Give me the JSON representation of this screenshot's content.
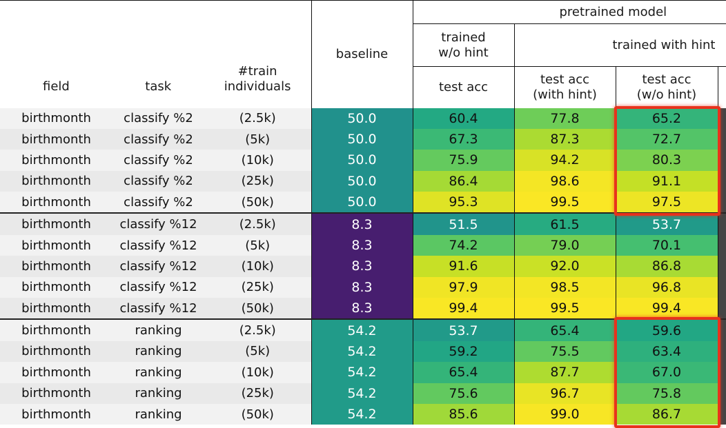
{
  "header": {
    "pretrained_model": "pretrained model",
    "trained_wo_hint": "trained\nw/o hint",
    "trained_with_hint": "trained with hint",
    "baseline": "baseline",
    "field": "field",
    "task": "task",
    "train_individuals": "#train\nindividuals",
    "test_acc": "test acc",
    "test_acc_with_hint": "test acc\n(with hint)",
    "test_acc_wo_hint": "test acc\n(w/o hint)"
  },
  "colors": {
    "highlight": "#e8321c",
    "colormap": "viridis"
  },
  "colormap_range": [
    0,
    100
  ],
  "rows": [
    {
      "field": "birthmonth",
      "task": "classify %2",
      "n": "(2.5k)",
      "baseline": "50.0",
      "wo_hint": "60.4",
      "with_hint": "77.8",
      "with_hint_wo": "65.2"
    },
    {
      "field": "birthmonth",
      "task": "classify %2",
      "n": "(5k)",
      "baseline": "50.0",
      "wo_hint": "67.3",
      "with_hint": "87.3",
      "with_hint_wo": "72.7"
    },
    {
      "field": "birthmonth",
      "task": "classify %2",
      "n": "(10k)",
      "baseline": "50.0",
      "wo_hint": "75.9",
      "with_hint": "94.2",
      "with_hint_wo": "80.3"
    },
    {
      "field": "birthmonth",
      "task": "classify %2",
      "n": "(25k)",
      "baseline": "50.0",
      "wo_hint": "86.4",
      "with_hint": "98.6",
      "with_hint_wo": "91.1"
    },
    {
      "field": "birthmonth",
      "task": "classify %2",
      "n": "(50k)",
      "baseline": "50.0",
      "wo_hint": "95.3",
      "with_hint": "99.5",
      "with_hint_wo": "97.5"
    },
    {
      "field": "birthmonth",
      "task": "classify %12",
      "n": "(2.5k)",
      "baseline": "8.3",
      "wo_hint": "51.5",
      "with_hint": "61.5",
      "with_hint_wo": "53.7"
    },
    {
      "field": "birthmonth",
      "task": "classify %12",
      "n": "(5k)",
      "baseline": "8.3",
      "wo_hint": "74.2",
      "with_hint": "79.0",
      "with_hint_wo": "70.1"
    },
    {
      "field": "birthmonth",
      "task": "classify %12",
      "n": "(10k)",
      "baseline": "8.3",
      "wo_hint": "91.6",
      "with_hint": "92.0",
      "with_hint_wo": "86.8"
    },
    {
      "field": "birthmonth",
      "task": "classify %12",
      "n": "(25k)",
      "baseline": "8.3",
      "wo_hint": "97.9",
      "with_hint": "98.5",
      "with_hint_wo": "96.8"
    },
    {
      "field": "birthmonth",
      "task": "classify %12",
      "n": "(50k)",
      "baseline": "8.3",
      "wo_hint": "99.4",
      "with_hint": "99.5",
      "with_hint_wo": "99.4"
    },
    {
      "field": "birthmonth",
      "task": "ranking",
      "n": "(2.5k)",
      "baseline": "54.2",
      "wo_hint": "53.7",
      "with_hint": "65.4",
      "with_hint_wo": "59.6"
    },
    {
      "field": "birthmonth",
      "task": "ranking",
      "n": "(5k)",
      "baseline": "54.2",
      "wo_hint": "59.2",
      "with_hint": "75.5",
      "with_hint_wo": "63.4"
    },
    {
      "field": "birthmonth",
      "task": "ranking",
      "n": "(10k)",
      "baseline": "54.2",
      "wo_hint": "65.4",
      "with_hint": "87.7",
      "with_hint_wo": "67.0"
    },
    {
      "field": "birthmonth",
      "task": "ranking",
      "n": "(25k)",
      "baseline": "54.2",
      "wo_hint": "75.6",
      "with_hint": "96.7",
      "with_hint_wo": "75.8"
    },
    {
      "field": "birthmonth",
      "task": "ranking",
      "n": "(50k)",
      "baseline": "54.2",
      "wo_hint": "85.6",
      "with_hint": "99.0",
      "with_hint_wo": "86.7"
    }
  ]
}
